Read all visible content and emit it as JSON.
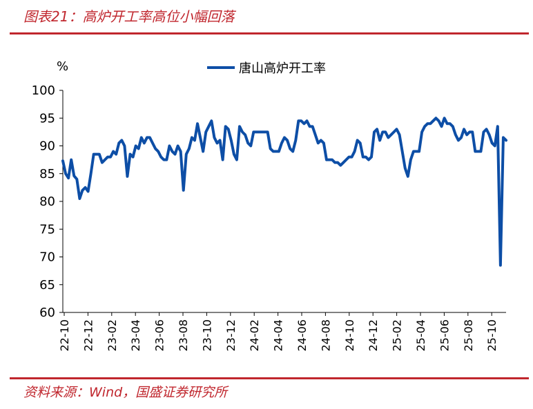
{
  "figure": {
    "title": "图表21：高炉开工率高位小幅回落",
    "source": "资料来源：Wind，国盛证券研究所"
  },
  "colors": {
    "accent": "#c0262d",
    "series": "#0d4ea6"
  },
  "chart_data": {
    "type": "line",
    "title": "",
    "xlabel": "",
    "ylabel": "%",
    "ylim": [
      60,
      100
    ],
    "yticks": [
      60,
      65,
      70,
      75,
      80,
      85,
      90,
      95,
      100
    ],
    "xticks": [
      "22-10",
      "22-12",
      "23-02",
      "23-04",
      "23-06",
      "23-08",
      "23-10",
      "23-12",
      "24-02",
      "24-04",
      "24-06",
      "24-08",
      "24-10",
      "24-12",
      "25-02",
      "25-04",
      "25-06",
      "25-08",
      "25-10"
    ],
    "grid": false,
    "legend": "top",
    "series": [
      {
        "name": "唐山高炉开工率",
        "unit": "week",
        "start_tick": "22-10",
        "ticks_per_label": 8.6,
        "values": [
          87.3,
          85.0,
          84.2,
          87.5,
          84.6,
          84.0,
          80.5,
          82.0,
          82.5,
          81.8,
          85.0,
          88.5,
          88.5,
          88.5,
          87.0,
          87.5,
          88.0,
          88.0,
          89.0,
          88.5,
          90.5,
          91.0,
          90.0,
          84.5,
          88.5,
          88.0,
          90.0,
          89.5,
          91.5,
          90.5,
          91.5,
          91.5,
          90.5,
          89.5,
          89.0,
          88.0,
          87.5,
          87.5,
          90.0,
          89.0,
          88.5,
          90.0,
          89.0,
          82.0,
          88.5,
          89.5,
          91.5,
          91.0,
          94.0,
          91.5,
          89.0,
          92.5,
          93.5,
          94.5,
          91.5,
          90.5,
          91.0,
          87.5,
          93.5,
          93.0,
          91.0,
          88.5,
          87.5,
          93.5,
          92.5,
          92.0,
          90.5,
          90.0,
          92.5,
          92.5,
          92.5,
          92.5,
          92.5,
          92.5,
          89.5,
          89.0,
          89.0,
          89.0,
          90.5,
          91.5,
          91.0,
          89.5,
          89.0,
          91.0,
          94.5,
          94.5,
          94.0,
          94.5,
          93.5,
          93.5,
          92.0,
          90.5,
          91.0,
          90.5,
          87.5,
          87.5,
          87.5,
          87.0,
          87.0,
          86.5,
          87.0,
          87.5,
          88.0,
          88.0,
          89.0,
          91.0,
          90.5,
          88.0,
          88.0,
          87.5,
          88.0,
          92.5,
          93.0,
          91.0,
          92.5,
          92.5,
          91.5,
          92.0,
          92.5,
          93.0,
          92.0,
          89.0,
          86.0,
          84.5,
          87.5,
          89.0,
          89.0,
          89.0,
          92.5,
          93.5,
          94.0,
          94.0,
          94.5,
          95.0,
          94.5,
          93.5,
          95.0,
          94.0,
          94.0,
          93.5,
          92.0,
          91.0,
          91.5,
          93.0,
          92.0,
          92.5,
          92.5,
          89.0,
          89.0,
          89.0,
          92.5,
          93.0,
          92.0,
          90.5,
          90.0,
          93.5,
          68.5,
          91.5,
          91.0
        ]
      }
    ]
  }
}
